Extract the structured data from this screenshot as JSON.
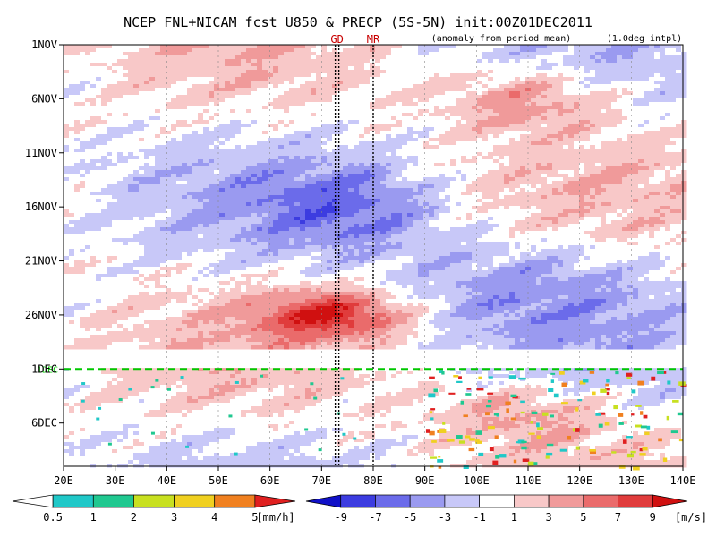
{
  "chart_data": {
    "type": "heatmap",
    "title": "NCEP_FNL+NICAM_fcst U850 & PRECP (5S-5N) init:00Z01DEC2011",
    "subtitle_left": "(anomaly from period mean)",
    "subtitle_right": "(1.0deg intpl)",
    "x_ticks": [
      "20E",
      "30E",
      "40E",
      "50E",
      "60E",
      "70E",
      "80E",
      "90E",
      "100E",
      "110E",
      "120E",
      "130E",
      "140E"
    ],
    "x_range_deg": [
      20,
      140
    ],
    "y_ticks": [
      "1NOV",
      "6NOV",
      "11NOV",
      "16NOV",
      "21NOV",
      "26NOV",
      "1DEC",
      "6DEC"
    ],
    "y_range_day": [
      0,
      39
    ],
    "forecast_start_day": 30,
    "forecast_start_label": "1DEC",
    "markers": [
      {
        "label": "GD",
        "lon": 73
      },
      {
        "label": "MR",
        "lon": 80
      }
    ],
    "u850": {
      "unit": "[m/s]",
      "levels": [
        "-9",
        "-7",
        "-5",
        "-3",
        "-1",
        "1",
        "3",
        "5",
        "7",
        "9"
      ],
      "colors": [
        "#1010c8",
        "#3c3ce0",
        "#6b6bea",
        "#9a9af0",
        "#c8c8f8",
        "#ffffff",
        "#f8c8c8",
        "#f09a9a",
        "#ea6b6b",
        "#e03c3c",
        "#d01010"
      ]
    },
    "precip": {
      "unit": "[mm/h]",
      "levels": [
        "0.5",
        "1",
        "2",
        "3",
        "4",
        "5"
      ],
      "colors": [
        "#ffffff",
        "#20c8c8",
        "#20c890",
        "#c8e020",
        "#f0d020",
        "#f08020",
        "#e02020"
      ]
    },
    "colors": {
      "positive": "#e03c3c",
      "negative": "#3c3ce0",
      "marker_line": "#000000",
      "forecast_line": "#00c800",
      "marker_label": "#c80000"
    }
  }
}
